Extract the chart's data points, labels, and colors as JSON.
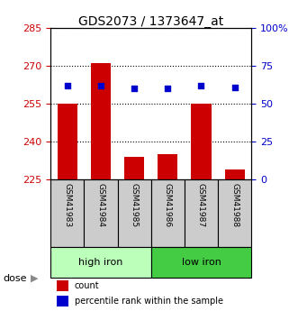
{
  "title": "GDS2073 / 1373647_at",
  "samples": [
    "GSM41983",
    "GSM41984",
    "GSM41985",
    "GSM41986",
    "GSM41987",
    "GSM41988"
  ],
  "bar_values": [
    255,
    271,
    234,
    235,
    255,
    229
  ],
  "bar_bottom": 225,
  "dot_values": [
    62,
    62,
    60,
    60,
    62,
    61
  ],
  "ylim_left": [
    225,
    285
  ],
  "ylim_right": [
    0,
    100
  ],
  "yticks_left": [
    225,
    240,
    255,
    270,
    285
  ],
  "yticks_right": [
    0,
    25,
    50,
    75,
    100
  ],
  "ytick_labels_right": [
    "0",
    "25",
    "50",
    "75",
    "100%"
  ],
  "bar_color": "#cc0000",
  "dot_color": "#0000cc",
  "high_iron_color": "#bbffbb",
  "low_iron_color": "#44cc44",
  "dose_label": "dose",
  "legend_count": "count",
  "legend_percentile": "percentile rank within the sample",
  "left_tick_color": "#cc0000",
  "right_tick_color": "#0000cc",
  "background_color": "white",
  "bar_width": 0.6,
  "tick_fontsize": 8,
  "label_fontsize": 7,
  "title_fontsize": 10
}
